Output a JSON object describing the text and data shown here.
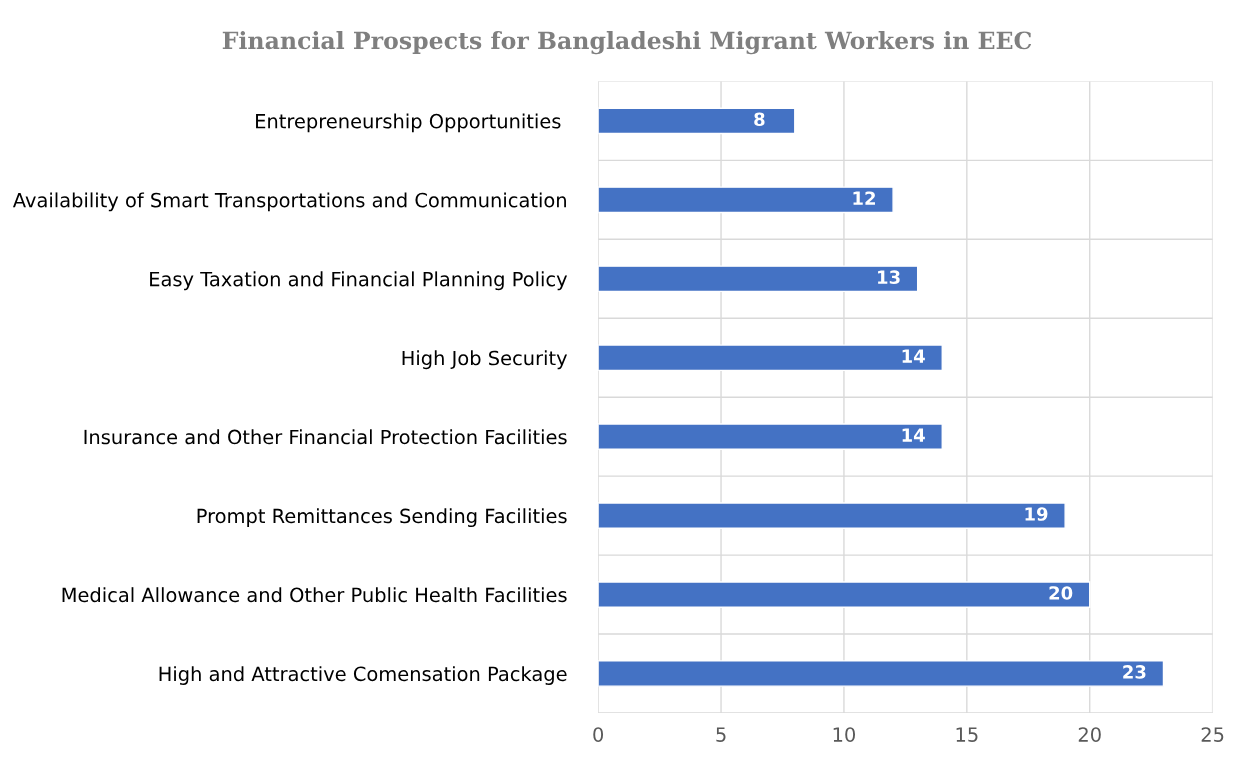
{
  "chart_data": {
    "type": "bar",
    "orientation": "horizontal",
    "title": "Financial Prospects for Bangladeshi Migrant Workers in EEC",
    "categories": [
      "Entrepreneurship Opportunities ",
      "Availability of Smart Transportations and Communication",
      "Easy Taxation and Financial Planning Policy",
      "High Job Security",
      "Insurance and Other Financial Protection Facilities",
      "Prompt Remittances Sending Facilities",
      "Medical Allowance and Other Public Health Facilities",
      "High and Attractive Comensation Package"
    ],
    "values": [
      8,
      12,
      13,
      14,
      14,
      19,
      20,
      23
    ],
    "color": "#4472c4",
    "xlim": [
      0,
      25
    ],
    "xticks": [
      0,
      5,
      10,
      15,
      20,
      25
    ],
    "grid": true,
    "data_labels": true
  }
}
